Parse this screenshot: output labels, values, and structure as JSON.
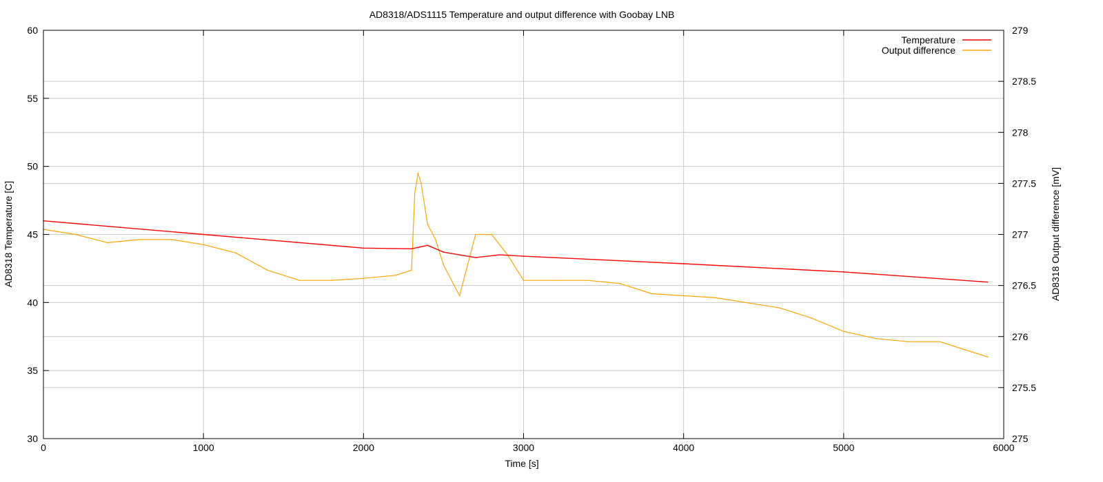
{
  "chart_data": {
    "type": "line",
    "title": "AD8318/ADS1115 Temperature and output difference with Goobay LNB",
    "xlabel": "Time [s]",
    "ylabel": "AD8318 Temperature [C]",
    "y2label": "AD8318 Output difference [mV]",
    "xlim": [
      0,
      6000
    ],
    "ylim": [
      30,
      60
    ],
    "y2lim": [
      275,
      279
    ],
    "x_ticks": [
      0,
      1000,
      2000,
      3000,
      4000,
      5000,
      6000
    ],
    "y_ticks": [
      30,
      35,
      40,
      45,
      50,
      55,
      60
    ],
    "y2_ticks": [
      275,
      275.5,
      276,
      276.5,
      277,
      277.5,
      278,
      278.5,
      279
    ],
    "grid": true,
    "legend_position": "top-right",
    "series": [
      {
        "name": "Temperature",
        "axis": "left",
        "color": "#ff0000",
        "points": [
          [
            0,
            46.0
          ],
          [
            1000,
            45.0
          ],
          [
            2000,
            44.0
          ],
          [
            2300,
            43.95
          ],
          [
            2400,
            44.2
          ],
          [
            2500,
            43.7
          ],
          [
            2700,
            43.3
          ],
          [
            2850,
            43.5
          ],
          [
            3000,
            43.4
          ],
          [
            4000,
            42.85
          ],
          [
            5000,
            42.25
          ],
          [
            5900,
            41.5
          ]
        ]
      },
      {
        "name": "Output difference",
        "axis": "right",
        "color": "#ffa500",
        "points": [
          [
            0,
            277.05
          ],
          [
            200,
            277.0
          ],
          [
            400,
            276.92
          ],
          [
            600,
            276.95
          ],
          [
            800,
            276.95
          ],
          [
            1000,
            276.9
          ],
          [
            1200,
            276.82
          ],
          [
            1400,
            276.65
          ],
          [
            1600,
            276.55
          ],
          [
            1800,
            276.55
          ],
          [
            2000,
            276.57
          ],
          [
            2200,
            276.6
          ],
          [
            2300,
            276.65
          ],
          [
            2320,
            277.4
          ],
          [
            2340,
            277.6
          ],
          [
            2360,
            277.5
          ],
          [
            2400,
            277.1
          ],
          [
            2450,
            276.95
          ],
          [
            2500,
            276.7
          ],
          [
            2600,
            276.4
          ],
          [
            2700,
            277.0
          ],
          [
            2800,
            277.0
          ],
          [
            2900,
            276.8
          ],
          [
            3000,
            276.55
          ],
          [
            3200,
            276.55
          ],
          [
            3400,
            276.55
          ],
          [
            3600,
            276.52
          ],
          [
            3800,
            276.42
          ],
          [
            4000,
            276.4
          ],
          [
            4200,
            276.38
          ],
          [
            4400,
            276.33
          ],
          [
            4600,
            276.28
          ],
          [
            4800,
            276.18
          ],
          [
            5000,
            276.05
          ],
          [
            5200,
            275.98
          ],
          [
            5400,
            275.95
          ],
          [
            5600,
            275.95
          ],
          [
            5800,
            275.85
          ],
          [
            5900,
            275.8
          ]
        ]
      }
    ]
  }
}
